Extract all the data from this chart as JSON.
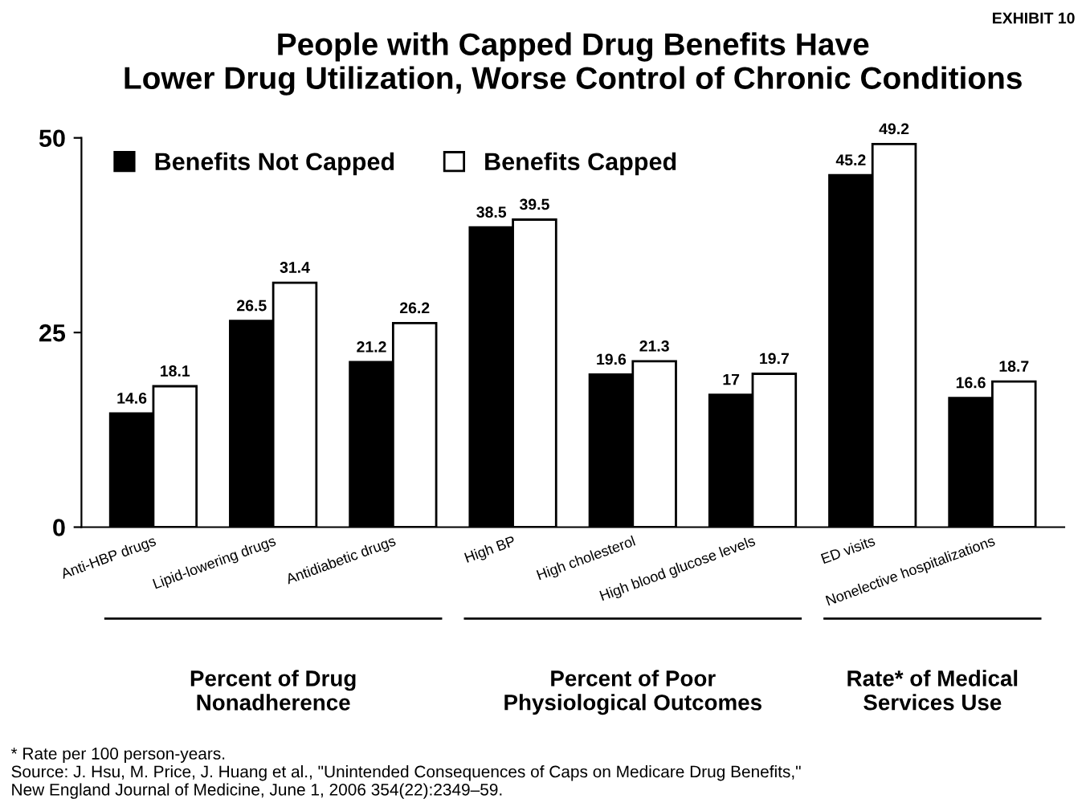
{
  "chart_data": {
    "type": "bar",
    "title": "People with Capped Drug Benefits Have\nLower Drug Utilization, Worse Control of Chronic Conditions",
    "categories": [
      "Anti-HBP drugs",
      "Lipid-lowering drugs",
      "Antidiabetic drugs",
      "High BP",
      "High cholesterol",
      "High blood glucose levels",
      "ED visits",
      "Nonelective hospitalizations"
    ],
    "series": [
      {
        "name": "Benefits Not Capped",
        "color": "#000000",
        "values": [
          14.6,
          26.5,
          21.2,
          38.5,
          19.6,
          17,
          45.2,
          16.6
        ]
      },
      {
        "name": "Benefits Capped",
        "color": "#ffffff",
        "values": [
          18.1,
          31.4,
          26.2,
          39.5,
          21.3,
          19.7,
          49.2,
          18.7
        ]
      }
    ],
    "ylim": [
      0,
      50
    ],
    "yticks": [
      0,
      25,
      50
    ],
    "grid": false,
    "legend": "top",
    "data_labels": true,
    "annotations": [
      "Percent of Drug\nNonadherence",
      "Percent of Poor\nPhysiological Outcomes",
      "Rate* of Medical\nServices Use",
      "EXHIBIT 10",
      "* Rate per 100 person-years.\nSource: J. Hsu, M. Price, J. Huang et al., \"Unintended Consequences of Caps on Medicare Drug Benefits,\"\nNew England Journal of Medicine, June 1, 2006 354(22):2349–59."
    ]
  }
}
